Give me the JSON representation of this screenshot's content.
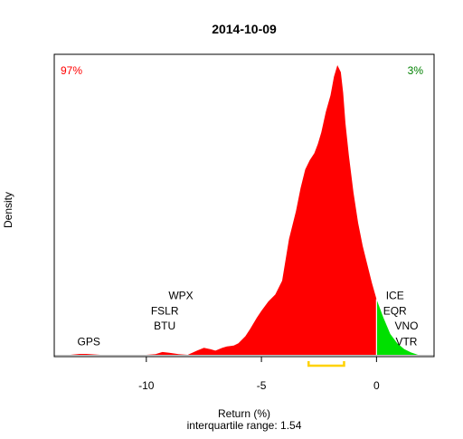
{
  "chart_data": {
    "type": "area",
    "title": "2014-10-09",
    "xlabel": "Return (%)",
    "ylabel": "Density",
    "subtitle": "interquartile range: 1.54",
    "xlim": [
      -14,
      2.5
    ],
    "x_ticks": [
      -10,
      -5,
      0
    ],
    "split_x": 0,
    "left_pct_label": "97%",
    "right_pct_label": "3%",
    "colors": {
      "negative": "#ff0000",
      "positive": "#00e000",
      "left_pct": "#ff0000",
      "right_pct": "#008000",
      "iqr": "#ffd200",
      "baseline": "#bebebe",
      "axis": "#000000"
    },
    "iqr": [
      -2.95,
      -1.41
    ],
    "density": {
      "x": [
        -13.3,
        -12.9,
        -12.6,
        -12.3,
        -12.0,
        -11.5,
        -11.0,
        -10.5,
        -10.0,
        -9.6,
        -9.3,
        -9.0,
        -8.6,
        -8.2,
        -7.8,
        -7.5,
        -7.2,
        -7.0,
        -6.7,
        -6.5,
        -6.2,
        -6.0,
        -5.7,
        -5.5,
        -5.2,
        -5.0,
        -4.7,
        -4.4,
        -4.1,
        -3.8,
        -3.5,
        -3.3,
        -3.1,
        -2.9,
        -2.7,
        -2.55,
        -2.4,
        -2.2,
        -2.0,
        -1.85,
        -1.7,
        -1.55,
        -1.45,
        -1.35,
        -1.2,
        -1.0,
        -0.8,
        -0.6,
        -0.4,
        -0.2,
        0.0,
        0.3,
        0.6,
        0.9,
        1.2,
        1.5,
        1.8
      ],
      "y": [
        0.0,
        0.004,
        0.004,
        0.002,
        0.0,
        0.0,
        0.0,
        0.0,
        0.0,
        0.003,
        0.012,
        0.009,
        0.003,
        0.0,
        0.018,
        0.03,
        0.024,
        0.018,
        0.03,
        0.036,
        0.04,
        0.05,
        0.08,
        0.11,
        0.16,
        0.19,
        0.23,
        0.26,
        0.32,
        0.5,
        0.62,
        0.72,
        0.8,
        0.84,
        0.87,
        0.91,
        0.96,
        1.05,
        1.12,
        1.2,
        1.25,
        1.22,
        1.13,
        1.0,
        0.86,
        0.7,
        0.57,
        0.47,
        0.39,
        0.31,
        0.24,
        0.16,
        0.09,
        0.05,
        0.025,
        0.01,
        0.0
      ]
    },
    "labels_left": [
      {
        "text": "GPS",
        "x": -12.5,
        "y": 0.057
      },
      {
        "text": "BTU",
        "x": -9.2,
        "y": 0.125
      },
      {
        "text": "FSLR",
        "x": -9.2,
        "y": 0.19
      },
      {
        "text": "WPX",
        "x": -8.5,
        "y": 0.255
      }
    ],
    "labels_right": [
      {
        "text": "VTR",
        "x": 1.3,
        "y": 0.057
      },
      {
        "text": "VNO",
        "x": 1.3,
        "y": 0.125
      },
      {
        "text": "EQR",
        "x": 0.8,
        "y": 0.19
      },
      {
        "text": "ICE",
        "x": 0.8,
        "y": 0.255
      }
    ]
  }
}
